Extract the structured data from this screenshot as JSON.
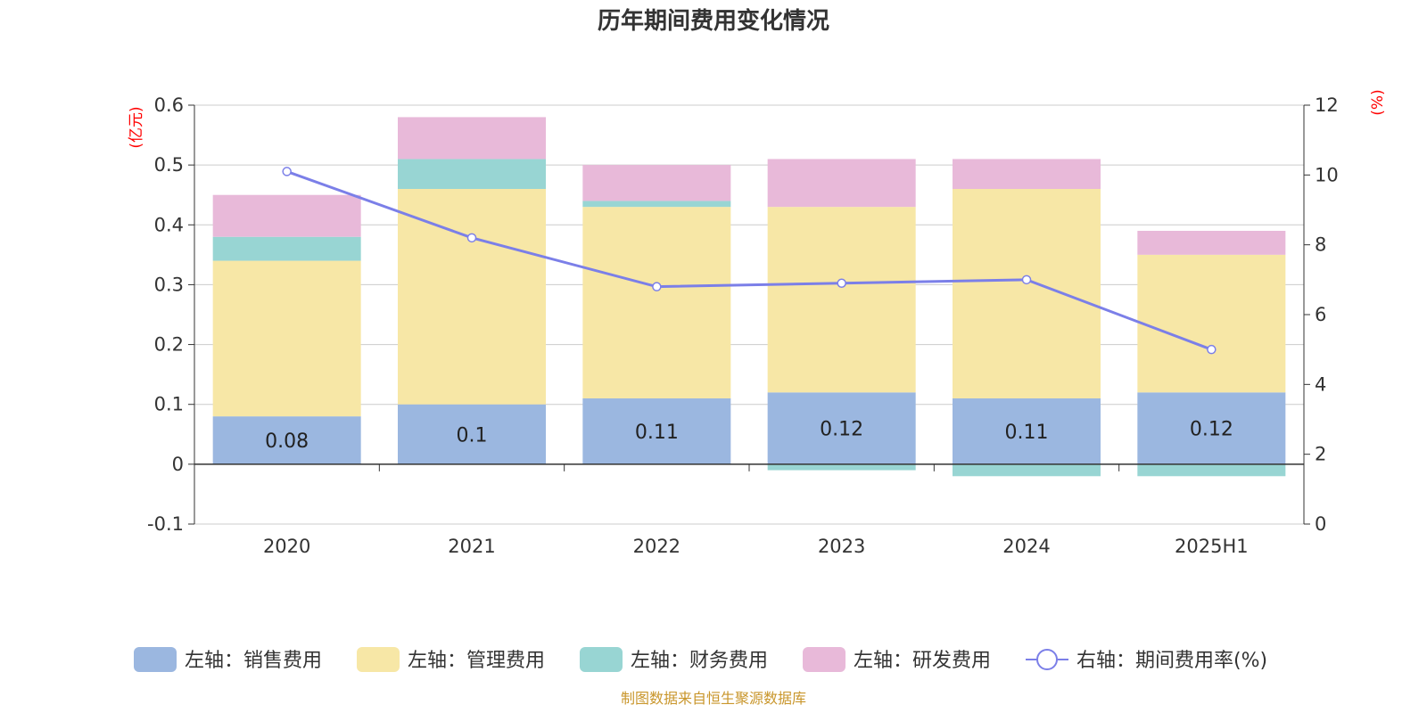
{
  "chart_data": {
    "type": "bar",
    "title": "历年期间费用变化情况",
    "categories": [
      "2020",
      "2021",
      "2022",
      "2023",
      "2024",
      "2025H1"
    ],
    "left_axis": {
      "unit": "(亿元)",
      "range": [
        -0.1,
        0.6
      ],
      "ticks": [
        -0.1,
        0,
        0.1,
        0.2,
        0.3,
        0.4,
        0.5,
        0.6
      ],
      "tick_labels": [
        "-0.1",
        "0",
        "0.1",
        "0.2",
        "0.3",
        "0.4",
        "0.5",
        "0.6"
      ]
    },
    "right_axis": {
      "unit": "(%)",
      "range": [
        0,
        12
      ],
      "ticks": [
        0,
        2,
        4,
        6,
        8,
        10,
        12
      ],
      "tick_labels": [
        "0",
        "2",
        "4",
        "6",
        "8",
        "10",
        "12"
      ]
    },
    "series": [
      {
        "name": "左轴：销售费用",
        "type": "bar",
        "axis": "left",
        "color": "#9bb7e0",
        "values": [
          0.08,
          0.1,
          0.11,
          0.12,
          0.11,
          0.12
        ],
        "labels": [
          "0.08",
          "0.1",
          "0.11",
          "0.12",
          "0.11",
          "0.12"
        ]
      },
      {
        "name": "左轴：管理费用",
        "type": "bar",
        "axis": "left",
        "color": "#f7e7a6",
        "values": [
          0.26,
          0.36,
          0.32,
          0.31,
          0.35,
          0.23
        ]
      },
      {
        "name": "左轴：财务费用",
        "type": "bar",
        "axis": "left",
        "color": "#98d5d3",
        "values": [
          0.04,
          0.05,
          0.01,
          -0.01,
          -0.02,
          -0.02
        ]
      },
      {
        "name": "左轴：研发费用",
        "type": "bar",
        "axis": "left",
        "color": "#e8b9d9",
        "values": [
          0.07,
          0.07,
          0.06,
          0.08,
          0.05,
          0.04
        ]
      },
      {
        "name": "右轴：期间费用率(%)",
        "type": "line",
        "axis": "right",
        "color": "#7b7fe8",
        "values": [
          10.1,
          8.2,
          6.8,
          6.9,
          7.0,
          5.0
        ]
      }
    ],
    "legend_position": "bottom",
    "grid": true
  },
  "source": "制图数据来自恒生聚源数据库"
}
